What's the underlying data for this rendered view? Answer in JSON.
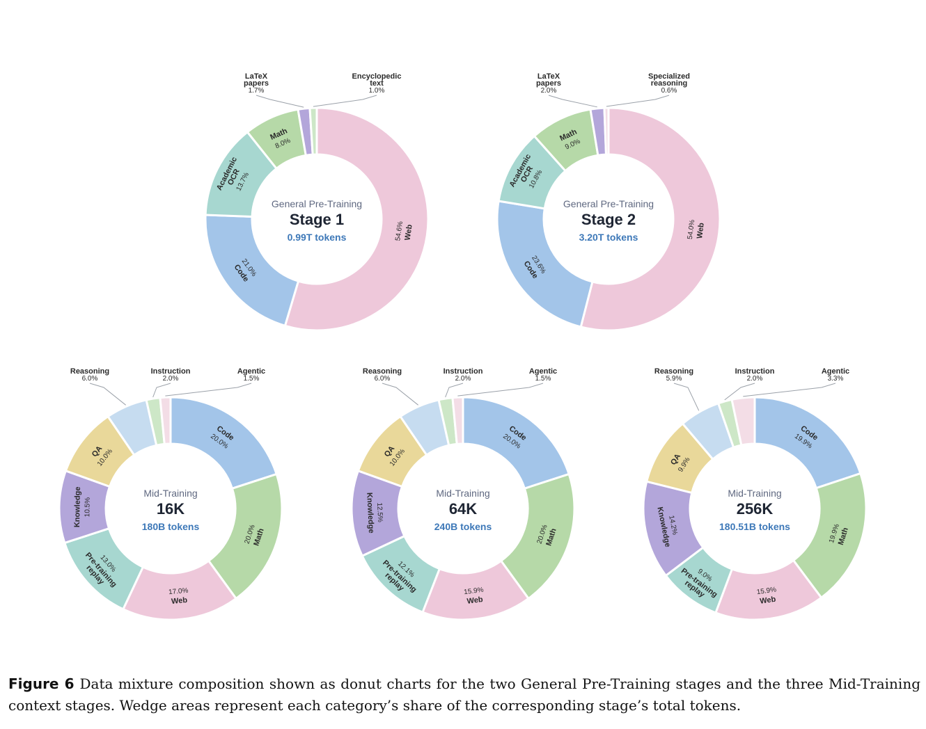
{
  "chart_data": [
    {
      "type": "pie",
      "subtitle": "General Pre-Training",
      "title": "Stage 1",
      "tokens": "0.99T tokens",
      "slices": [
        {
          "label": "Web",
          "value": 54.6,
          "pct": "54.6%",
          "color": "#eec8da"
        },
        {
          "label": "Code",
          "value": 21.0,
          "pct": "21.0%",
          "color": "#a3c5e9"
        },
        {
          "label": "Academic OCR",
          "value": 13.7,
          "pct": "13.7%",
          "color": "#a7d7d0"
        },
        {
          "label": "Math",
          "value": 8.0,
          "pct": "8.0%",
          "color": "#b6d9a8"
        },
        {
          "label": "LaTeX papers",
          "value": 1.7,
          "pct": "1.7%",
          "color": "#b3a6da"
        },
        {
          "label": "Encyclopedic text",
          "value": 1.0,
          "pct": "1.0%",
          "color": "#cde7c7"
        }
      ]
    },
    {
      "type": "pie",
      "subtitle": "General Pre-Training",
      "title": "Stage 2",
      "tokens": "3.20T tokens",
      "slices": [
        {
          "label": "Web",
          "value": 54.0,
          "pct": "54.0%",
          "color": "#eec8da"
        },
        {
          "label": "Code",
          "value": 23.6,
          "pct": "23.6%",
          "color": "#a3c5e9"
        },
        {
          "label": "Academic OCR",
          "value": 10.8,
          "pct": "10.8%",
          "color": "#a7d7d0"
        },
        {
          "label": "Math",
          "value": 9.0,
          "pct": "9.0%",
          "color": "#b6d9a8"
        },
        {
          "label": "LaTeX papers",
          "value": 2.0,
          "pct": "2.0%",
          "color": "#b3a6da"
        },
        {
          "label": "Specialized reasoning",
          "value": 0.6,
          "pct": "0.6%",
          "color": "#f3dde6"
        }
      ]
    },
    {
      "type": "pie",
      "subtitle": "Mid-Training",
      "title": "16K",
      "tokens": "180B tokens",
      "slices": [
        {
          "label": "Code",
          "value": 20.0,
          "pct": "20.0%",
          "color": "#a3c5e9"
        },
        {
          "label": "Math",
          "value": 20.0,
          "pct": "20.0%",
          "color": "#b6d9a8"
        },
        {
          "label": "Web",
          "value": 17.0,
          "pct": "17.0%",
          "color": "#eec8da"
        },
        {
          "label": "Pre-training replay",
          "value": 13.0,
          "pct": "13.0%",
          "color": "#a7d7d0"
        },
        {
          "label": "Knowledge",
          "value": 10.5,
          "pct": "10.5%",
          "color": "#b3a6da"
        },
        {
          "label": "QA",
          "value": 10.0,
          "pct": "10.0%",
          "color": "#e9d89a"
        },
        {
          "label": "Reasoning",
          "value": 6.0,
          "pct": "6.0%",
          "color": "#c6dcf0"
        },
        {
          "label": "Instruction",
          "value": 2.0,
          "pct": "2.0%",
          "color": "#cde7c7"
        },
        {
          "label": "Agentic",
          "value": 1.5,
          "pct": "1.5%",
          "color": "#f3dde6"
        }
      ]
    },
    {
      "type": "pie",
      "subtitle": "Mid-Training",
      "title": "64K",
      "tokens": "240B tokens",
      "slices": [
        {
          "label": "Code",
          "value": 20.0,
          "pct": "20.0%",
          "color": "#a3c5e9"
        },
        {
          "label": "Math",
          "value": 20.0,
          "pct": "20.0%",
          "color": "#b6d9a8"
        },
        {
          "label": "Web",
          "value": 15.9,
          "pct": "15.9%",
          "color": "#eec8da"
        },
        {
          "label": "Pre-training replay",
          "value": 12.1,
          "pct": "12.1%",
          "color": "#a7d7d0"
        },
        {
          "label": "Knowledge",
          "value": 12.5,
          "pct": "12.5%",
          "color": "#b3a6da"
        },
        {
          "label": "QA",
          "value": 10.0,
          "pct": "10.0%",
          "color": "#e9d89a"
        },
        {
          "label": "Reasoning",
          "value": 6.0,
          "pct": "6.0%",
          "color": "#c6dcf0"
        },
        {
          "label": "Instruction",
          "value": 2.0,
          "pct": "2.0%",
          "color": "#cde7c7"
        },
        {
          "label": "Agentic",
          "value": 1.5,
          "pct": "1.5%",
          "color": "#f3dde6"
        }
      ]
    },
    {
      "type": "pie",
      "subtitle": "Mid-Training",
      "title": "256K",
      "tokens": "180.51B tokens",
      "slices": [
        {
          "label": "Code",
          "value": 19.9,
          "pct": "19.9%",
          "color": "#a3c5e9"
        },
        {
          "label": "Math",
          "value": 19.9,
          "pct": "19.9%",
          "color": "#b6d9a8"
        },
        {
          "label": "Web",
          "value": 15.9,
          "pct": "15.9%",
          "color": "#eec8da"
        },
        {
          "label": "Pre-training replay",
          "value": 9.0,
          "pct": "9.0%",
          "color": "#a7d7d0"
        },
        {
          "label": "Knowledge",
          "value": 14.2,
          "pct": "14.2%",
          "color": "#b3a6da"
        },
        {
          "label": "QA",
          "value": 9.9,
          "pct": "9.9%",
          "color": "#e9d89a"
        },
        {
          "label": "Reasoning",
          "value": 5.9,
          "pct": "5.9%",
          "color": "#c6dcf0"
        },
        {
          "label": "Instruction",
          "value": 2.0,
          "pct": "2.0%",
          "color": "#cde7c7"
        },
        {
          "label": "Agentic",
          "value": 3.3,
          "pct": "3.3%",
          "color": "#f3dde6"
        }
      ]
    }
  ],
  "caption": {
    "figure_label": "Figure 6",
    "text": "Data mixture composition shown as donut charts for the two General Pre-Training stages and the three Mid-Training context stages. Wedge areas represent each category’s share of the corresponding stage’s total tokens."
  }
}
